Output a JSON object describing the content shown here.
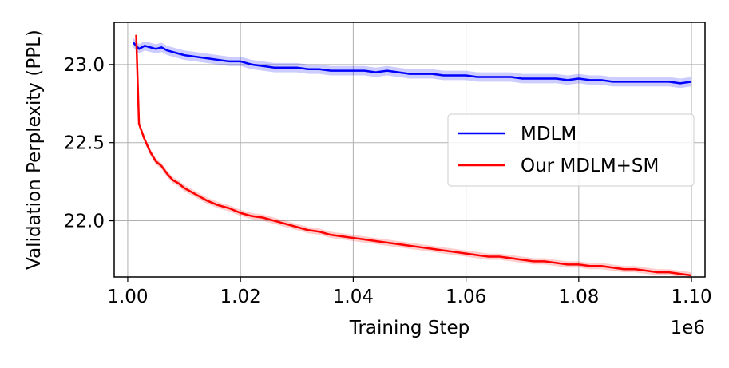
{
  "chart_data": {
    "type": "line",
    "title": "",
    "xlabel": "Training Step",
    "ylabel": "Validation Perplexity (PPL)",
    "x_offset_label": "1e6",
    "xlim": [
      0.9976,
      1.1024
    ],
    "ylim": [
      21.64,
      23.27
    ],
    "x_ticks": [
      1.0,
      1.02,
      1.04,
      1.06,
      1.08,
      1.1
    ],
    "x_tick_labels": [
      "1.00",
      "1.02",
      "1.04",
      "1.06",
      "1.08",
      "1.10"
    ],
    "y_ticks": [
      22.0,
      22.5,
      23.0
    ],
    "y_tick_labels": [
      "22.0",
      "22.5",
      "23.0"
    ],
    "grid": true,
    "legend_position": "center-right",
    "series": [
      {
        "name": "MDLM",
        "color": "#0000ff",
        "band_color": "#0000ff",
        "x": [
          1.001,
          1.002,
          1.003,
          1.004,
          1.005,
          1.006,
          1.007,
          1.008,
          1.009,
          1.01,
          1.012,
          1.014,
          1.016,
          1.018,
          1.02,
          1.022,
          1.024,
          1.026,
          1.028,
          1.03,
          1.032,
          1.034,
          1.036,
          1.038,
          1.04,
          1.042,
          1.044,
          1.046,
          1.048,
          1.05,
          1.052,
          1.054,
          1.056,
          1.058,
          1.06,
          1.062,
          1.064,
          1.066,
          1.068,
          1.07,
          1.072,
          1.074,
          1.076,
          1.078,
          1.08,
          1.082,
          1.084,
          1.086,
          1.088,
          1.09,
          1.092,
          1.094,
          1.096,
          1.098,
          1.1
        ],
        "y": [
          23.14,
          23.1,
          23.12,
          23.11,
          23.1,
          23.11,
          23.09,
          23.08,
          23.07,
          23.06,
          23.05,
          23.04,
          23.03,
          23.02,
          23.02,
          23.0,
          22.99,
          22.98,
          22.98,
          22.98,
          22.97,
          22.97,
          22.96,
          22.96,
          22.96,
          22.96,
          22.95,
          22.96,
          22.95,
          22.94,
          22.94,
          22.94,
          22.93,
          22.93,
          22.93,
          22.92,
          22.92,
          22.92,
          22.92,
          22.91,
          22.91,
          22.91,
          22.91,
          22.9,
          22.91,
          22.9,
          22.9,
          22.89,
          22.89,
          22.89,
          22.89,
          22.89,
          22.89,
          22.88,
          22.89
        ],
        "band_half_width": 0.03
      },
      {
        "name": "Our MDLM+SM",
        "color": "#ff0000",
        "band_color": "#ff0000",
        "x": [
          1.0015,
          1.002,
          1.003,
          1.004,
          1.005,
          1.006,
          1.007,
          1.008,
          1.009,
          1.01,
          1.012,
          1.014,
          1.016,
          1.018,
          1.02,
          1.022,
          1.024,
          1.026,
          1.028,
          1.03,
          1.032,
          1.034,
          1.036,
          1.038,
          1.04,
          1.042,
          1.044,
          1.046,
          1.048,
          1.05,
          1.052,
          1.054,
          1.056,
          1.058,
          1.06,
          1.062,
          1.064,
          1.066,
          1.068,
          1.07,
          1.072,
          1.074,
          1.076,
          1.078,
          1.08,
          1.082,
          1.084,
          1.086,
          1.088,
          1.09,
          1.092,
          1.094,
          1.096,
          1.098,
          1.1
        ],
        "y": [
          23.19,
          22.62,
          22.52,
          22.44,
          22.38,
          22.35,
          22.3,
          22.26,
          22.24,
          22.21,
          22.17,
          22.13,
          22.1,
          22.08,
          22.05,
          22.03,
          22.02,
          22.0,
          21.98,
          21.96,
          21.94,
          21.93,
          21.91,
          21.9,
          21.89,
          21.88,
          21.87,
          21.86,
          21.85,
          21.84,
          21.83,
          21.82,
          21.81,
          21.8,
          21.79,
          21.78,
          21.77,
          21.77,
          21.76,
          21.75,
          21.74,
          21.74,
          21.73,
          21.72,
          21.72,
          21.71,
          21.71,
          21.7,
          21.69,
          21.69,
          21.68,
          21.67,
          21.67,
          21.66,
          21.65
        ],
        "band_half_width": 0.02
      }
    ]
  }
}
